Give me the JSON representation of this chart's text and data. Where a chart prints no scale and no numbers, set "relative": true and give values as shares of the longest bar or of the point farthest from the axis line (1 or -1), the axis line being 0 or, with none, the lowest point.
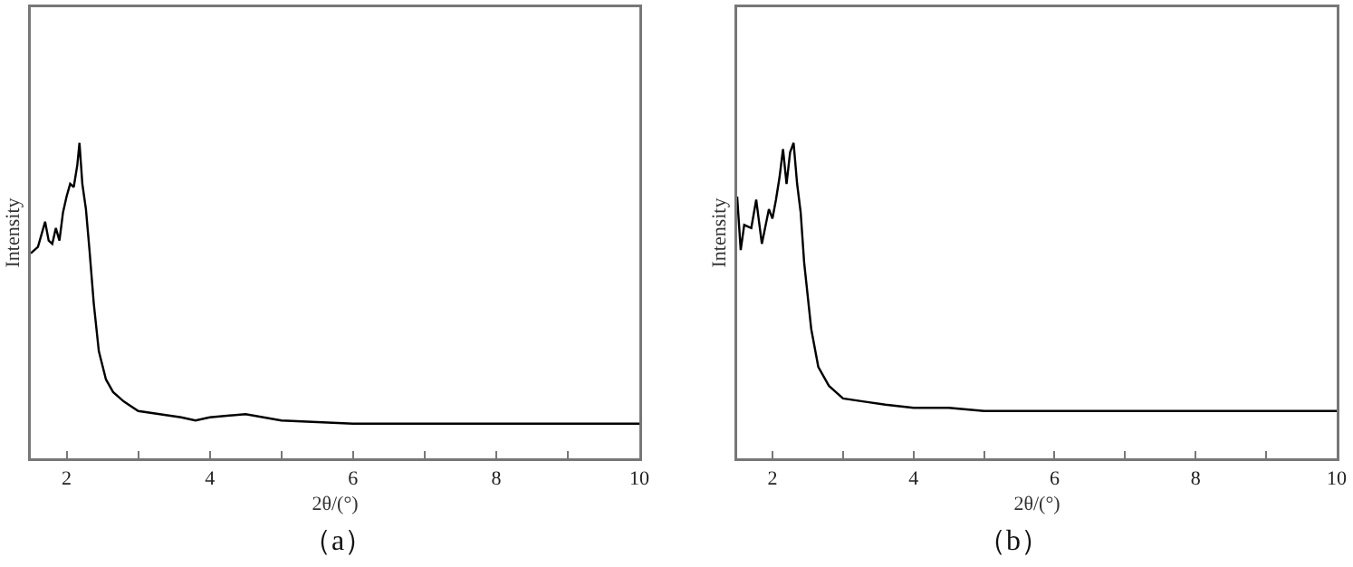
{
  "chart_data": [
    {
      "type": "line",
      "title": "（a）",
      "xlabel": "2θ/(°)",
      "ylabel": "Intensity",
      "relative": true,
      "tick_labels": "x",
      "marker": "none",
      "line_style": "solid",
      "xlim": [
        1.5,
        10
      ],
      "xticks": [
        2,
        {
          "value": 3,
          "label": null
        },
        4,
        {
          "value": 5,
          "label": null
        },
        6,
        {
          "value": 7,
          "label": null
        },
        8,
        {
          "value": 9,
          "label": null
        },
        10
      ],
      "x": [
        1.5,
        1.6,
        1.7,
        1.75,
        1.8,
        1.85,
        1.9,
        1.95,
        2.0,
        2.05,
        2.1,
        2.15,
        2.18,
        2.22,
        2.27,
        2.32,
        2.38,
        2.45,
        2.55,
        2.65,
        2.8,
        3.0,
        3.3,
        3.6,
        3.8,
        4.0,
        4.5,
        5,
        6,
        7,
        8,
        9,
        10
      ],
      "series": [
        {
          "color": "#000000",
          "values": [
            0.65,
            0.67,
            0.75,
            0.69,
            0.68,
            0.73,
            0.69,
            0.78,
            0.83,
            0.87,
            0.86,
            0.93,
            1.0,
            0.87,
            0.79,
            0.66,
            0.49,
            0.34,
            0.25,
            0.21,
            0.18,
            0.15,
            0.14,
            0.13,
            0.12,
            0.13,
            0.14,
            0.12,
            0.11,
            0.11,
            0.11,
            0.11,
            0.11
          ]
        }
      ]
    },
    {
      "type": "line",
      "title": "（b）",
      "xlabel": "2θ/(°)",
      "ylabel": "Intensity",
      "relative": true,
      "tick_labels": "x",
      "marker": "none",
      "line_style": "solid",
      "xlim": [
        1.5,
        10
      ],
      "xticks": [
        2,
        {
          "value": 3,
          "label": null
        },
        4,
        {
          "value": 5,
          "label": null
        },
        6,
        {
          "value": 7,
          "label": null
        },
        8,
        {
          "value": 9,
          "label": null
        },
        10
      ],
      "x": [
        1.5,
        1.55,
        1.6,
        1.7,
        1.77,
        1.85,
        1.95,
        2.0,
        2.05,
        2.1,
        2.15,
        2.2,
        2.25,
        2.3,
        2.35,
        2.4,
        2.45,
        2.55,
        2.65,
        2.8,
        3.0,
        3.3,
        3.6,
        4.0,
        4.5,
        5,
        6,
        7,
        8,
        9,
        10
      ],
      "series": [
        {
          "color": "#000000",
          "values": [
            0.83,
            0.66,
            0.74,
            0.73,
            0.82,
            0.68,
            0.79,
            0.76,
            0.82,
            0.89,
            0.98,
            0.87,
            0.97,
            1.0,
            0.87,
            0.78,
            0.62,
            0.41,
            0.29,
            0.23,
            0.19,
            0.18,
            0.17,
            0.16,
            0.16,
            0.15,
            0.15,
            0.15,
            0.15,
            0.15,
            0.15
          ]
        }
      ]
    }
  ]
}
